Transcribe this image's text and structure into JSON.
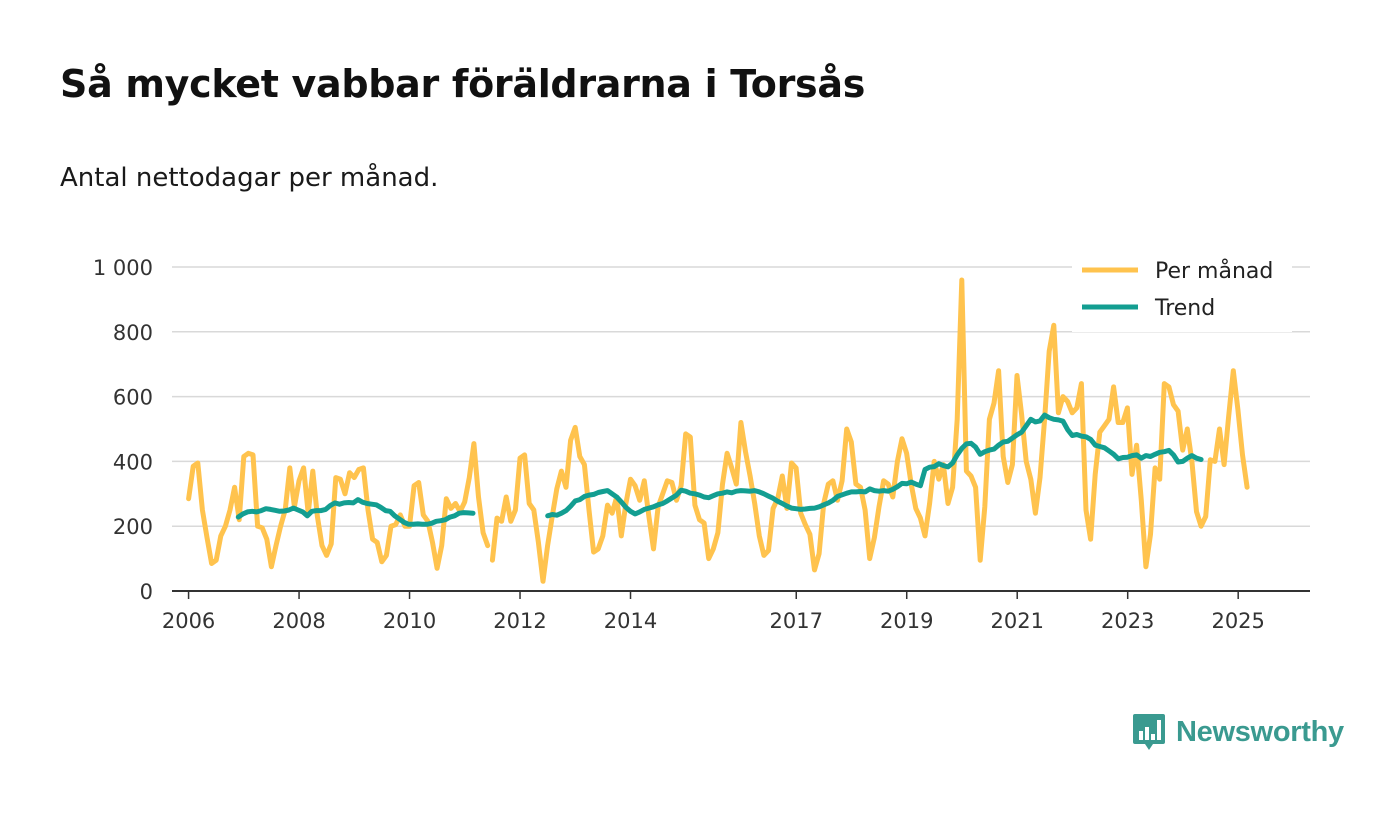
{
  "header": {
    "title": "Så mycket vabbar föräldrarna i Torsås",
    "subtitle": "Antal nettodagar per månad."
  },
  "brand": {
    "name": "Newsworthy",
    "color": "#3a9a90",
    "icon": "bar-chart-icon"
  },
  "colors": {
    "monthly": "#ffc34e",
    "trend": "#139e91",
    "grid": "#d9d9d9",
    "axis": "#333333"
  },
  "chart_data": {
    "type": "line",
    "title": "Så mycket vabbar föräldrarna i Torsås",
    "subtitle": "Antal nettodagar per månad.",
    "xlabel": "",
    "ylabel": "",
    "xlim": [
      2005.7,
      2026.3
    ],
    "ylim": [
      0,
      1000
    ],
    "yticks": [
      0,
      200,
      400,
      600,
      800,
      1000
    ],
    "ytick_labels": [
      "0",
      "200",
      "400",
      "600",
      "800",
      "1 000"
    ],
    "xticks": [
      2006,
      2008,
      2010,
      2012,
      2014,
      2017,
      2019,
      2021,
      2023,
      2025
    ],
    "xtick_labels": [
      "2006",
      "2008",
      "2010",
      "2012",
      "2014",
      "2017",
      "2019",
      "2021",
      "2023",
      "2025"
    ],
    "grid": true,
    "legend_position": "top-right",
    "series": [
      {
        "name": "Per månad",
        "segments": [
          {
            "start": 2006.0,
            "step": 0.0833,
            "values": [
              285,
              385,
              395,
              250,
              165,
              85,
              95,
              170,
              200,
              250,
              320,
              220,
              415,
              425,
              420,
              200,
              195,
              160,
              75,
              140,
              200,
              250,
              380,
              260,
              340,
              380,
              240,
              370,
              230,
              140,
              110,
              145,
              350,
              345,
              300,
              365,
              350,
              375,
              380,
              250,
              160,
              150,
              90,
              110,
              200,
              205,
              235,
              200,
              200,
              325,
              335,
              235,
              215,
              150,
              70,
              140,
              285,
              255,
              270,
              245,
              275,
              350,
              455,
              290,
              180,
              140
            ]
          },
          {
            "start": 2011.5,
            "step": 0.0833,
            "values": [
              95,
              225,
              215,
              290,
              215,
              250,
              410,
              420,
              270,
              250,
              150,
              30,
              140,
              230,
              315,
              370,
              320,
              465,
              505,
              415,
              390,
              250,
              120,
              130,
              170,
              265,
              240,
              290,
              170,
              270,
              345,
              325,
              280,
              340,
              230,
              130,
              260,
              300,
              340,
              335,
              280,
              325,
              485,
              475,
              265,
              220,
              210,
              100,
              130,
              180,
              330,
              425,
              380,
              330,
              520,
              430,
              355,
              270,
              170,
              110,
              125,
              255,
              285,
              355,
              255,
              395,
              380,
              240,
              205,
              175,
              65,
              115,
              270,
              330,
              340,
              280,
              340,
              500,
              460,
              330,
              320,
              250,
              100,
              165,
              260,
              340,
              330,
              290,
              400,
              470,
              425,
              330,
              255,
              225,
              170,
              270,
              400,
              345,
              390,
              270,
              320,
              530,
              960,
              370,
              355,
              320,
              95,
              260,
              530,
              580,
              680,
              415,
              335,
              390,
              665,
              545,
              400,
              345,
              240,
              350,
              530,
              740,
              820,
              550,
              600,
              585,
              550,
              565,
              640,
              250,
              160,
              360,
              490,
              510,
              530,
              630,
              520,
              520,
              565,
              360,
              450,
              280,
              75,
              175,
              380,
              345,
              640,
              630,
              575,
              555,
              435,
              500,
              400,
              245,
              200,
              230,
              405,
              400,
              500,
              390,
              540,
              680,
              560,
              420,
              320
            ]
          }
        ]
      },
      {
        "name": "Trend",
        "segments": [
          {
            "start": 2006.9,
            "step": 0.0833,
            "values": [
              228,
              238,
              244,
              246,
              244,
              248,
              254,
              252,
              249,
              246,
              247,
              250,
              256,
              250,
              244,
              232,
              246,
              248,
              248,
              252,
              264,
              272,
              268,
              272,
              273,
              272,
              282,
              274,
              270,
              268,
              266,
              258,
              248,
              246,
              232,
              222,
              212,
              206,
              206,
              207,
              206,
              206,
              209,
              215,
              217,
              220,
              228,
              232,
              240,
              242,
              241,
              240
            ]
          },
          {
            "start": 2012.5,
            "step": 0.0833,
            "values": [
              232,
              236,
              234,
              240,
              248,
              262,
              278,
              282,
              292,
              296,
              298,
              304,
              307,
              310,
              300,
              290,
              275,
              258,
              246,
              238,
              244,
              252,
              256,
              260,
              266,
              270,
              278,
              287,
              296,
              311,
              308,
              302,
              300,
              296,
              290,
              288,
              294,
              300,
              302,
              306,
              303,
              308,
              310,
              309,
              308,
              310,
              306,
              300,
              293,
              286,
              277,
              270,
              262,
              256,
              254,
              252,
              253,
              255,
              256,
              260,
              266,
              272,
              280,
              292,
              297,
              302,
              306,
              306,
              307,
              306,
              315,
              310,
              308,
              310,
              308,
              314,
              322,
              332,
              331,
              336,
              330,
              325,
              375,
              382,
              384,
              393,
              387,
              383,
              395,
              420,
              440,
              454,
              456,
              444,
              422,
              430,
              435,
              438,
              450,
              460,
              462,
              472,
              482,
              490,
              510,
              530,
              522,
              525,
              543,
              535,
              530,
              528,
              524,
              498,
              480,
              483,
              478,
              476,
              468,
              450,
              446,
              442,
              432,
              422,
              408,
              412,
              413,
              418,
              420,
              410,
              418,
              415,
              422,
              428,
              430,
              434,
              420,
              398,
              400,
              410,
              418,
              410,
              406
            ]
          }
        ]
      }
    ]
  }
}
